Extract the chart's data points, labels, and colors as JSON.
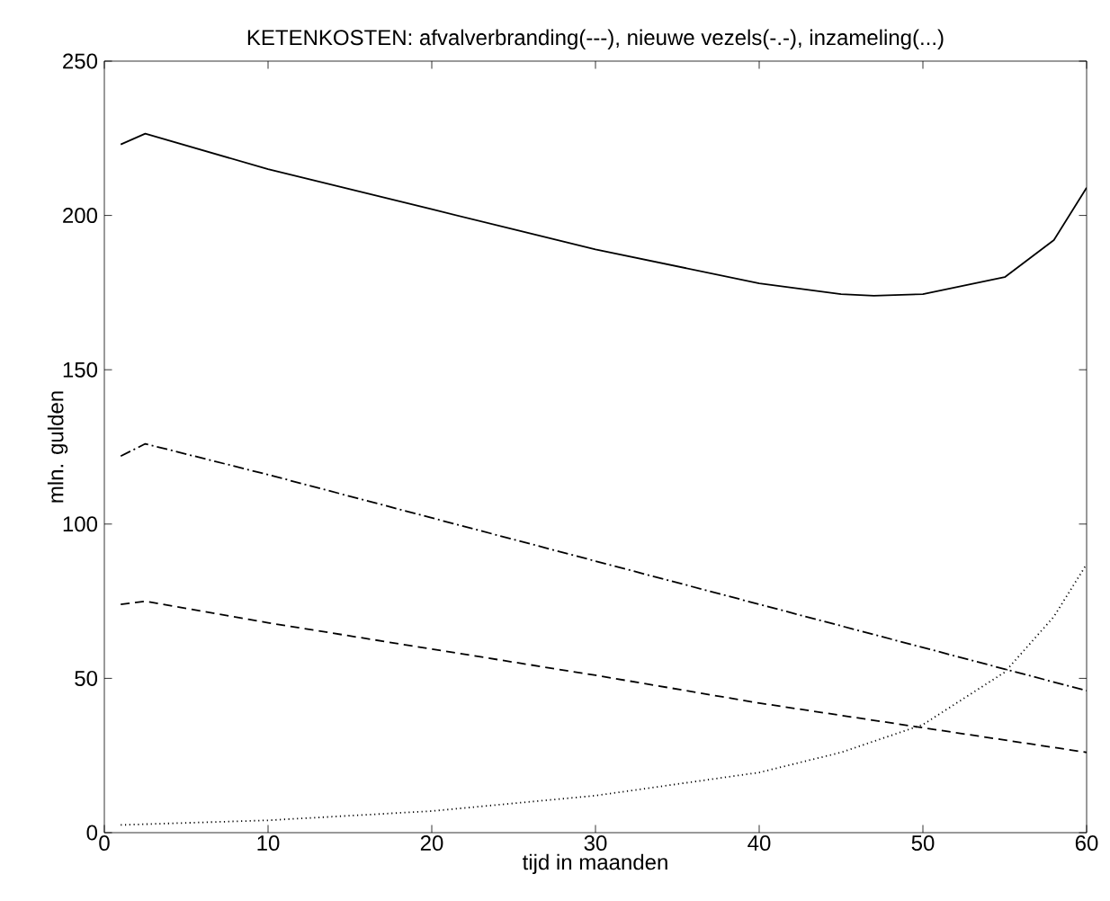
{
  "chart_data": {
    "type": "line",
    "title": "KETENKOSTEN: afvalverbranding(---), nieuwe vezels(-.-), inzameling(...)",
    "xlabel": "tijd in maanden",
    "ylabel": "mln. gulden",
    "xlim": [
      0,
      60
    ],
    "ylim": [
      0,
      250
    ],
    "xticks": [
      0,
      10,
      20,
      30,
      40,
      50,
      60
    ],
    "yticks": [
      0,
      50,
      100,
      150,
      200,
      250
    ],
    "grid": false,
    "marker": "none",
    "series": [
      {
        "color": "#000000",
        "line_style": "solid",
        "x": [
          1,
          2.5,
          10,
          20,
          30,
          40,
          45,
          47,
          50,
          55,
          58,
          60
        ],
        "values": [
          223,
          226.5,
          215,
          202,
          189,
          178,
          174.5,
          174,
          174.5,
          180,
          192,
          209
        ]
      },
      {
        "color": "#000000",
        "line_style": "dashed",
        "x": [
          1,
          2.5,
          10,
          20,
          30,
          40,
          50,
          60
        ],
        "values": [
          74,
          75,
          68,
          59.5,
          51,
          42,
          34,
          26
        ]
      },
      {
        "color": "#000000",
        "line_style": "dashdot",
        "x": [
          1,
          2.5,
          10,
          20,
          30,
          40,
          50,
          55,
          60
        ],
        "values": [
          122,
          126,
          116,
          102,
          88,
          74,
          60,
          53,
          46
        ]
      },
      {
        "color": "#000000",
        "line_style": "dotted",
        "x": [
          1,
          10,
          20,
          30,
          40,
          45,
          50,
          55,
          58,
          60
        ],
        "values": [
          2.5,
          4,
          7,
          12,
          19.5,
          26,
          35,
          52,
          70,
          87
        ]
      }
    ]
  }
}
